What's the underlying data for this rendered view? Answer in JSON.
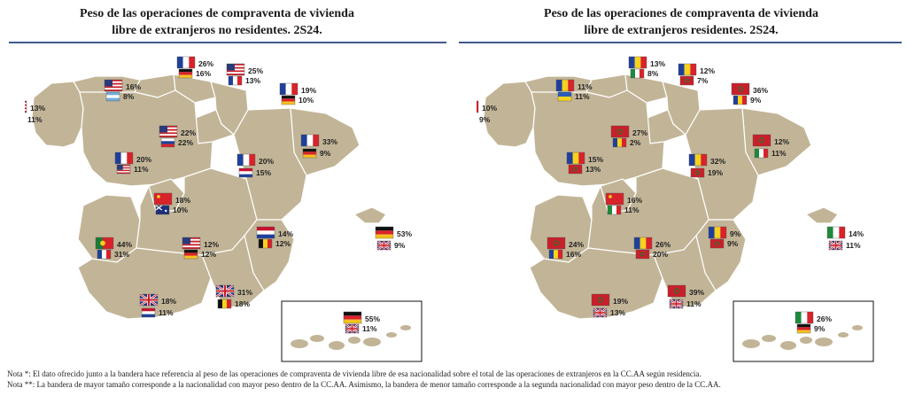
{
  "maps": [
    {
      "title_line1": "Peso de las operaciones de compraventa de vivienda",
      "title_line2": "libre de extranjeros no residentes. 2S24.",
      "regions": [
        {
          "name": "galicia",
          "flags": [
            {
              "country": "usa",
              "pct": "13%"
            },
            {
              "country": "portugal",
              "pct": "11%"
            }
          ]
        },
        {
          "name": "asturias",
          "flags": [
            {
              "country": "usa",
              "pct": "16%"
            },
            {
              "country": "argentina",
              "pct": "8%"
            }
          ]
        },
        {
          "name": "cantabria",
          "flags": [
            {
              "country": "france",
              "pct": "26%"
            },
            {
              "country": "germany",
              "pct": "16%"
            }
          ]
        },
        {
          "name": "pais_vasco",
          "flags": [
            {
              "country": "usa",
              "pct": "25%"
            },
            {
              "country": "france",
              "pct": "13%"
            }
          ]
        },
        {
          "name": "navarra",
          "flags": [
            {
              "country": "france",
              "pct": "19%"
            },
            {
              "country": "germany",
              "pct": "10%"
            }
          ]
        },
        {
          "name": "la_rioja",
          "flags": [
            {
              "country": "usa",
              "pct": "22%"
            },
            {
              "country": "russia",
              "pct": "22%"
            }
          ]
        },
        {
          "name": "cataluna",
          "flags": [
            {
              "country": "france",
              "pct": "33%"
            },
            {
              "country": "germany",
              "pct": "9%"
            }
          ]
        },
        {
          "name": "aragon",
          "flags": [
            {
              "country": "france",
              "pct": "20%"
            },
            {
              "country": "netherlands",
              "pct": "15%"
            }
          ]
        },
        {
          "name": "castilla_leon",
          "flags": [
            {
              "country": "france",
              "pct": "20%"
            },
            {
              "country": "usa",
              "pct": "11%"
            }
          ]
        },
        {
          "name": "madrid",
          "flags": [
            {
              "country": "china",
              "pct": "18%"
            },
            {
              "country": "australia",
              "pct": "10%"
            }
          ]
        },
        {
          "name": "extremadura",
          "flags": [
            {
              "country": "portugal",
              "pct": "44%"
            },
            {
              "country": "france",
              "pct": "31%"
            }
          ]
        },
        {
          "name": "castilla_la_mancha",
          "flags": [
            {
              "country": "usa",
              "pct": "12%"
            },
            {
              "country": "germany",
              "pct": "12%"
            }
          ]
        },
        {
          "name": "valencia",
          "flags": [
            {
              "country": "netherlands",
              "pct": "14%"
            },
            {
              "country": "belgium",
              "pct": "12%"
            }
          ]
        },
        {
          "name": "baleares",
          "flags": [
            {
              "country": "germany",
              "pct": "53%"
            },
            {
              "country": "uk",
              "pct": "9%"
            }
          ]
        },
        {
          "name": "andalucia",
          "flags": [
            {
              "country": "uk",
              "pct": "18%"
            },
            {
              "country": "netherlands",
              "pct": "11%"
            }
          ]
        },
        {
          "name": "murcia",
          "flags": [
            {
              "country": "uk",
              "pct": "31%"
            },
            {
              "country": "belgium",
              "pct": "18%"
            }
          ]
        },
        {
          "name": "canarias",
          "flags": [
            {
              "country": "germany",
              "pct": "55%"
            },
            {
              "country": "uk",
              "pct": "11%"
            }
          ]
        }
      ]
    },
    {
      "title_line1": "Peso de las operaciones de compraventa de vivienda",
      "title_line2": "libre de extranjeros residentes. 2S24.",
      "regions": [
        {
          "name": "galicia",
          "flags": [
            {
              "country": "portugal",
              "pct": "10%"
            },
            {
              "country": "venezuela",
              "pct": "9%"
            }
          ]
        },
        {
          "name": "asturias",
          "flags": [
            {
              "country": "romania",
              "pct": "11%"
            },
            {
              "country": "ukraine",
              "pct": "11%"
            }
          ]
        },
        {
          "name": "cantabria",
          "flags": [
            {
              "country": "romania",
              "pct": "13%"
            },
            {
              "country": "italy",
              "pct": "8%"
            }
          ]
        },
        {
          "name": "pais_vasco",
          "flags": [
            {
              "country": "romania",
              "pct": "12%"
            },
            {
              "country": "morocco",
              "pct": "7%"
            }
          ]
        },
        {
          "name": "navarra",
          "flags": [
            {
              "country": "morocco",
              "pct": "36%"
            },
            {
              "country": "romania",
              "pct": "9%"
            }
          ]
        },
        {
          "name": "la_rioja",
          "flags": [
            {
              "country": "morocco",
              "pct": "27%"
            },
            {
              "country": "romania",
              "pct": "2%"
            }
          ]
        },
        {
          "name": "cataluna",
          "flags": [
            {
              "country": "morocco",
              "pct": "12%"
            },
            {
              "country": "italy",
              "pct": "11%"
            }
          ]
        },
        {
          "name": "aragon",
          "flags": [
            {
              "country": "romania",
              "pct": "32%"
            },
            {
              "country": "morocco",
              "pct": "19%"
            }
          ]
        },
        {
          "name": "castilla_leon",
          "flags": [
            {
              "country": "romania",
              "pct": "15%"
            },
            {
              "country": "morocco",
              "pct": "13%"
            }
          ]
        },
        {
          "name": "madrid",
          "flags": [
            {
              "country": "china",
              "pct": "16%"
            },
            {
              "country": "italy",
              "pct": "11%"
            }
          ]
        },
        {
          "name": "extremadura",
          "flags": [
            {
              "country": "morocco",
              "pct": "24%"
            },
            {
              "country": "romania",
              "pct": "16%"
            }
          ]
        },
        {
          "name": "castilla_la_mancha",
          "flags": [
            {
              "country": "romania",
              "pct": "26%"
            },
            {
              "country": "morocco",
              "pct": "20%"
            }
          ]
        },
        {
          "name": "valencia",
          "flags": [
            {
              "country": "romania",
              "pct": "9%"
            },
            {
              "country": "morocco",
              "pct": "9%"
            }
          ]
        },
        {
          "name": "baleares",
          "flags": [
            {
              "country": "italy",
              "pct": "14%"
            },
            {
              "country": "uk",
              "pct": "11%"
            }
          ]
        },
        {
          "name": "andalucia",
          "flags": [
            {
              "country": "morocco",
              "pct": "19%"
            },
            {
              "country": "uk",
              "pct": "13%"
            }
          ]
        },
        {
          "name": "murcia",
          "flags": [
            {
              "country": "morocco",
              "pct": "39%"
            },
            {
              "country": "uk",
              "pct": "11%"
            }
          ]
        },
        {
          "name": "canarias",
          "flags": [
            {
              "country": "italy",
              "pct": "26%"
            },
            {
              "country": "germany",
              "pct": "9%"
            }
          ]
        }
      ]
    }
  ],
  "notes": {
    "note1": "Nota *: El dato ofrecido junto a la bandera hace referencia al peso de las operaciones de compraventa de vivienda libre de esa nacionalidad sobre el total de las operaciones de extranjeros en la CC.AA según residencia.",
    "note2": "Nota **: La bandera de mayor tamaño corresponde a la nacionalidad con mayor peso dentro de la CC.AA. Asimismo, la bandera de menor tamaño corresponde a la segunda nacionalidad con mayor peso dentro de la CC.AA."
  },
  "colors": {
    "land": "#c2b597",
    "border": "#ffffff",
    "rule": "#3d5a8a"
  }
}
